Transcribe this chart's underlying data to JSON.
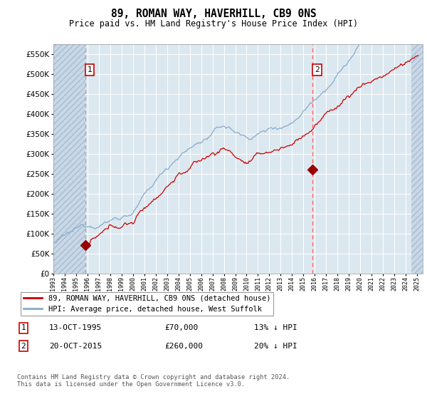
{
  "title": "89, ROMAN WAY, HAVERHILL, CB9 0NS",
  "subtitle": "Price paid vs. HM Land Registry's House Price Index (HPI)",
  "ytick_values": [
    0,
    50000,
    100000,
    150000,
    200000,
    250000,
    300000,
    350000,
    400000,
    450000,
    500000,
    550000
  ],
  "ylim": [
    0,
    575000
  ],
  "xlim_start": 1993.0,
  "xlim_end": 2025.5,
  "hatch_left_end": 1995.79,
  "hatch_right_start": 2024.5,
  "sale1_x": 1995.79,
  "sale1_y": 70000,
  "sale1_label": "1",
  "sale2_x": 2015.79,
  "sale2_y": 260000,
  "sale2_label": "2",
  "vline1_x": 1995.79,
  "vline2_x": 2015.79,
  "legend_line1": "89, ROMAN WAY, HAVERHILL, CB9 0NS (detached house)",
  "legend_line2": "HPI: Average price, detached house, West Suffolk",
  "annotation1_label": "1",
  "annotation1_date": "13-OCT-1995",
  "annotation1_price": "£70,000",
  "annotation1_hpi": "13% ↓ HPI",
  "annotation2_label": "2",
  "annotation2_date": "20-OCT-2015",
  "annotation2_price": "£260,000",
  "annotation2_hpi": "20% ↓ HPI",
  "footer": "Contains HM Land Registry data © Crown copyright and database right 2024.\nThis data is licensed under the Open Government Licence v3.0.",
  "bg_color": "#dce8f0",
  "line_red": "#cc0000",
  "line_blue": "#88aacc",
  "marker_color": "#990000",
  "vline1_color": "#aaaaaa",
  "vline2_color": "#ff6666"
}
